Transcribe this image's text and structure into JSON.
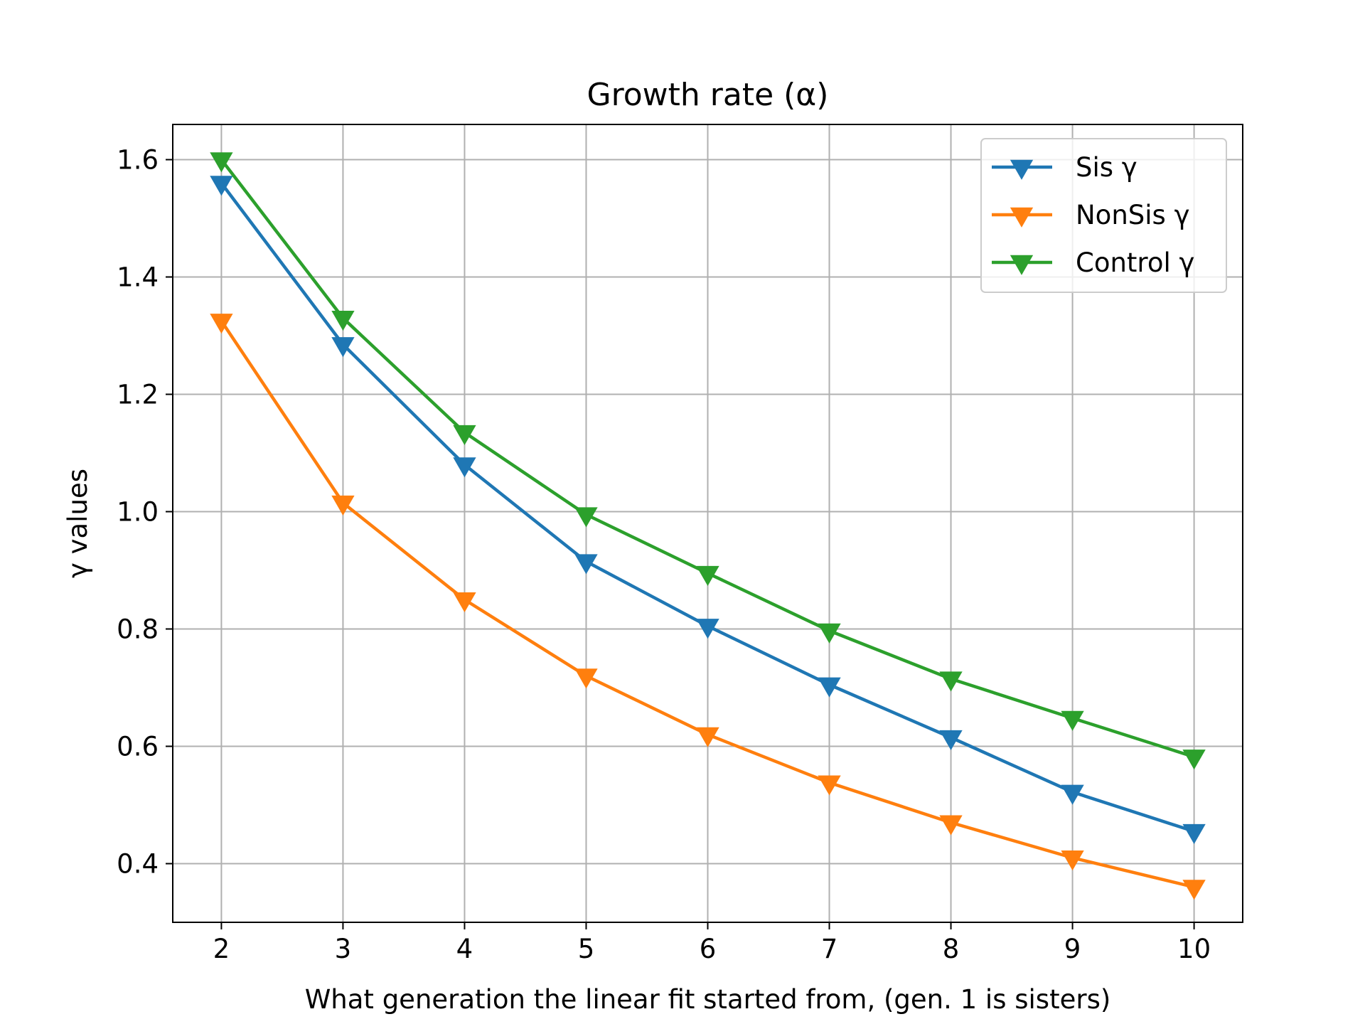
{
  "chart_data": {
    "type": "line",
    "title": "Growth rate (α)",
    "xlabel": "What generation the linear fit started from, (gen. 1 is sisters)",
    "ylabel": "γ values",
    "x": [
      2,
      3,
      4,
      5,
      6,
      7,
      8,
      9,
      10
    ],
    "xlim": [
      1.6,
      10.4
    ],
    "ylim": [
      0.3,
      1.66
    ],
    "xticks": [
      2,
      3,
      4,
      5,
      6,
      7,
      8,
      9,
      10
    ],
    "yticks": [
      0.4,
      0.6,
      0.8,
      1.0,
      1.2,
      1.4,
      1.6
    ],
    "xtick_labels": [
      "2",
      "3",
      "4",
      "5",
      "6",
      "7",
      "8",
      "9",
      "10"
    ],
    "ytick_labels": [
      "0.4",
      "0.6",
      "0.8",
      "1.0",
      "1.2",
      "1.4",
      "1.6"
    ],
    "grid": true,
    "legend": "top-right",
    "marker": "triangle-down",
    "series": [
      {
        "name": "Sis γ",
        "color": "#1f77b4",
        "values": [
          1.56,
          1.285,
          1.08,
          0.915,
          0.805,
          0.705,
          0.615,
          0.522,
          0.455
        ]
      },
      {
        "name": "NonSis γ",
        "color": "#ff7f0e",
        "values": [
          1.325,
          1.015,
          0.85,
          0.72,
          0.62,
          0.538,
          0.47,
          0.41,
          0.36
        ]
      },
      {
        "name": "Control γ",
        "color": "#2ca02c",
        "values": [
          1.6,
          1.33,
          1.135,
          0.995,
          0.895,
          0.797,
          0.715,
          0.648,
          0.582
        ]
      }
    ]
  }
}
